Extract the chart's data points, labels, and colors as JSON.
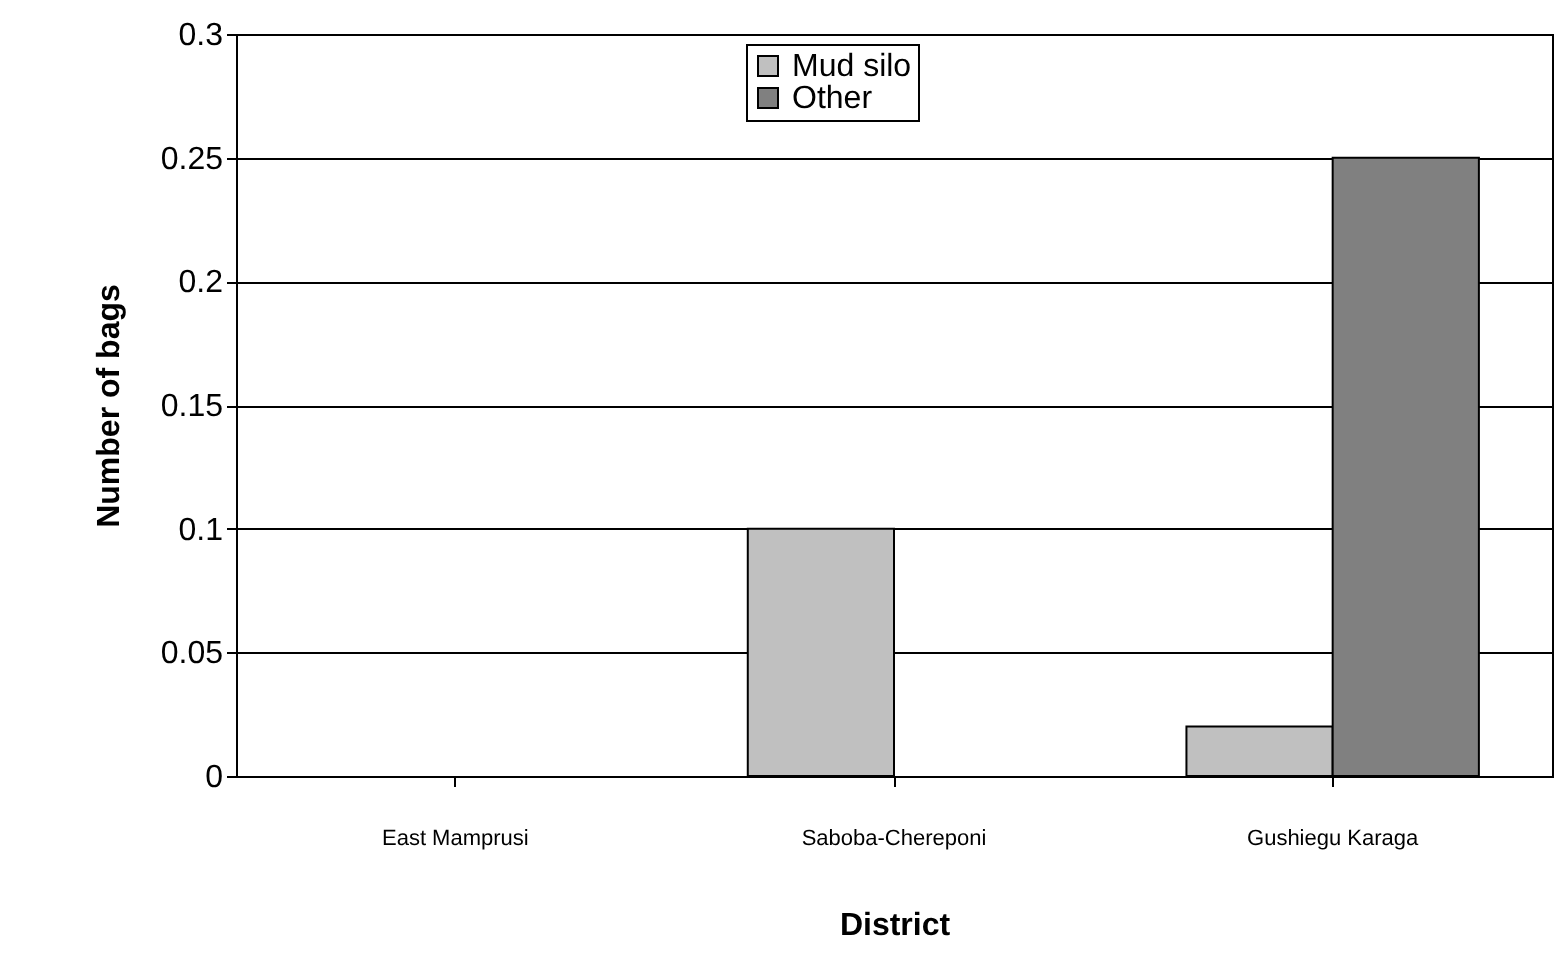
{
  "chart_data": {
    "type": "bar",
    "xlabel": "District",
    "ylabel": "Number of  bags",
    "categories": [
      "East Mamprusi",
      "Saboba-Chereponi",
      "Gushiegu Karaga"
    ],
    "series": [
      {
        "name": "Mud silo",
        "color": "#c0c0c0",
        "values": [
          0,
          0.1,
          0.02
        ]
      },
      {
        "name": "Other",
        "color": "#808080",
        "values": [
          0,
          0,
          0.25
        ]
      }
    ],
    "ylim": [
      0,
      0.3
    ],
    "yticks": [
      0,
      0.05,
      0.1,
      0.15,
      0.2,
      0.25,
      0.3
    ],
    "grid": "y",
    "legend": "top"
  }
}
